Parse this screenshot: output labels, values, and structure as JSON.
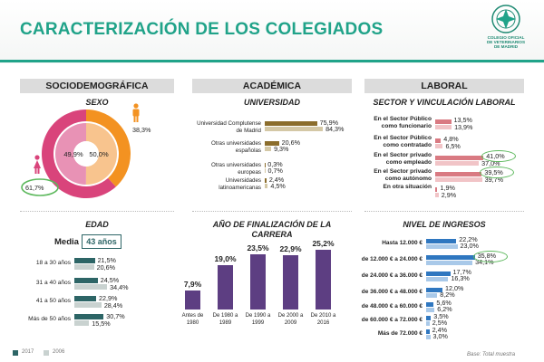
{
  "header": {
    "title": "CARACTERIZACIÓN DE LOS COLEGIADOS",
    "logo_text": [
      "COLEGIO OFICIAL",
      "DE VETERINARIOS",
      "DE MADRID"
    ]
  },
  "sections": {
    "socio": "SOCIODEMOGRÁFICA",
    "academica": "ACADÉMICA",
    "laboral": "LABORAL"
  },
  "colors": {
    "brand": "#20a389",
    "y2017_dark": "#2d6566",
    "y2006_light": "#c9d2d0",
    "pink": "#d9447b",
    "orange": "#f39221",
    "purple": "#5d3e82",
    "blue": "#2f77c0"
  },
  "legend": {
    "y2017": "2017",
    "y2006": "2006"
  },
  "footnote": "Base: Total muestra",
  "chart_data": [
    {
      "type": "pie",
      "title": "SEXO",
      "series": [
        {
          "values": [
            61.7,
            38.3
          ],
          "labels": [
            "61,7%",
            "38,3%"
          ]
        },
        {
          "values": [
            49.9,
            50.0
          ],
          "labels": [
            "49,9%",
            "50,0%"
          ]
        }
      ],
      "categories": [
        "Mujer",
        "Hombre"
      ]
    },
    {
      "type": "bar",
      "title": "EDAD",
      "mean_label": "Media",
      "mean_value": "43 años",
      "categories": [
        "18 a 30 años",
        "31 a 40 años",
        "41 a 50 años",
        "Más de 50 años"
      ],
      "series": [
        {
          "name": "2017",
          "values": [
            21.5,
            24.5,
            22.9,
            30.7
          ],
          "labels": [
            "21,5%",
            "24,5%",
            "22,9%",
            "30,7%"
          ]
        },
        {
          "name": "2006",
          "values": [
            20.6,
            34.4,
            28.4,
            15.5
          ],
          "labels": [
            "20,6%",
            "34,4%",
            "28,4%",
            "15,5%"
          ]
        }
      ]
    },
    {
      "type": "bar",
      "title": "UNIVERSIDAD",
      "categories": [
        "Universidad Complutense de Madrid",
        "Otras universidades españolas",
        "Otras universidades europeas",
        "Universidades latinoamericanas"
      ],
      "series": [
        {
          "name": "2017",
          "values": [
            75.9,
            20.6,
            0.3,
            2.4
          ],
          "labels": [
            "75,9%",
            "20,6%",
            "0,3%",
            "2,4%"
          ]
        },
        {
          "name": "2006",
          "values": [
            84.3,
            9.3,
            0.7,
            4.5
          ],
          "labels": [
            "84,3%",
            "9,3%",
            "0,7%",
            "4,5%"
          ]
        }
      ]
    },
    {
      "type": "bar",
      "title": "AÑO DE FINALIZACIÓN DE LA CARRERA",
      "categories": [
        "Antes de 1980",
        "De 1980 a 1989",
        "De 1990 a 1999",
        "De 2000 a 2009",
        "De 2010 a 2016"
      ],
      "values": [
        7.9,
        19.0,
        23.5,
        22.9,
        25.2
      ],
      "labels": [
        "7,9%",
        "19,0%",
        "23,5%",
        "22,9%",
        "25,2%"
      ]
    },
    {
      "type": "bar",
      "title": "SECTOR Y VINCULACIÓN LABORAL",
      "categories": [
        "En el Sector Público como funcionario",
        "En el Sector Público como contratado",
        "En el Sector privado como empleado",
        "En el Sector privado como autónomo",
        "En otra situación"
      ],
      "series": [
        {
          "name": "2017",
          "values": [
            13.5,
            4.8,
            41.0,
            39.5,
            1.9
          ],
          "labels": [
            "13,5%",
            "4,8%",
            "41,0%",
            "39,5%",
            "1,9%"
          ]
        },
        {
          "name": "2006",
          "values": [
            13.9,
            6.5,
            37.0,
            39.7,
            2.9
          ],
          "labels": [
            "13,9%",
            "6,5%",
            "37,0%",
            "39,7%",
            "2,9%"
          ]
        }
      ]
    },
    {
      "type": "bar",
      "title": "NIVEL DE INGRESOS",
      "categories": [
        "Hasta 12.000 €",
        "de 12.000 € a 24.000 €",
        "de 24.000 € a 36.000 €",
        "de 36.000 € a 48.000 €",
        "de 48.000 € a 60.000 €",
        "de 60.000 € a 72.000 €",
        "Más de 72.000 €"
      ],
      "series": [
        {
          "name": "2017",
          "values": [
            22.2,
            35.8,
            17.7,
            12.0,
            5.6,
            3.5,
            2.4
          ],
          "labels": [
            "22,2%",
            "35,8%",
            "17,7%",
            "12,0%",
            "5,6%",
            "3,5%",
            "2,4%"
          ]
        },
        {
          "name": "2006",
          "values": [
            23.0,
            34.1,
            16.3,
            8.2,
            6.2,
            2.5,
            3.0
          ],
          "labels": [
            "23,0%",
            "34,1%",
            "16,3%",
            "8,2%",
            "6,2%",
            "2,5%",
            "3,0%"
          ]
        }
      ]
    }
  ]
}
